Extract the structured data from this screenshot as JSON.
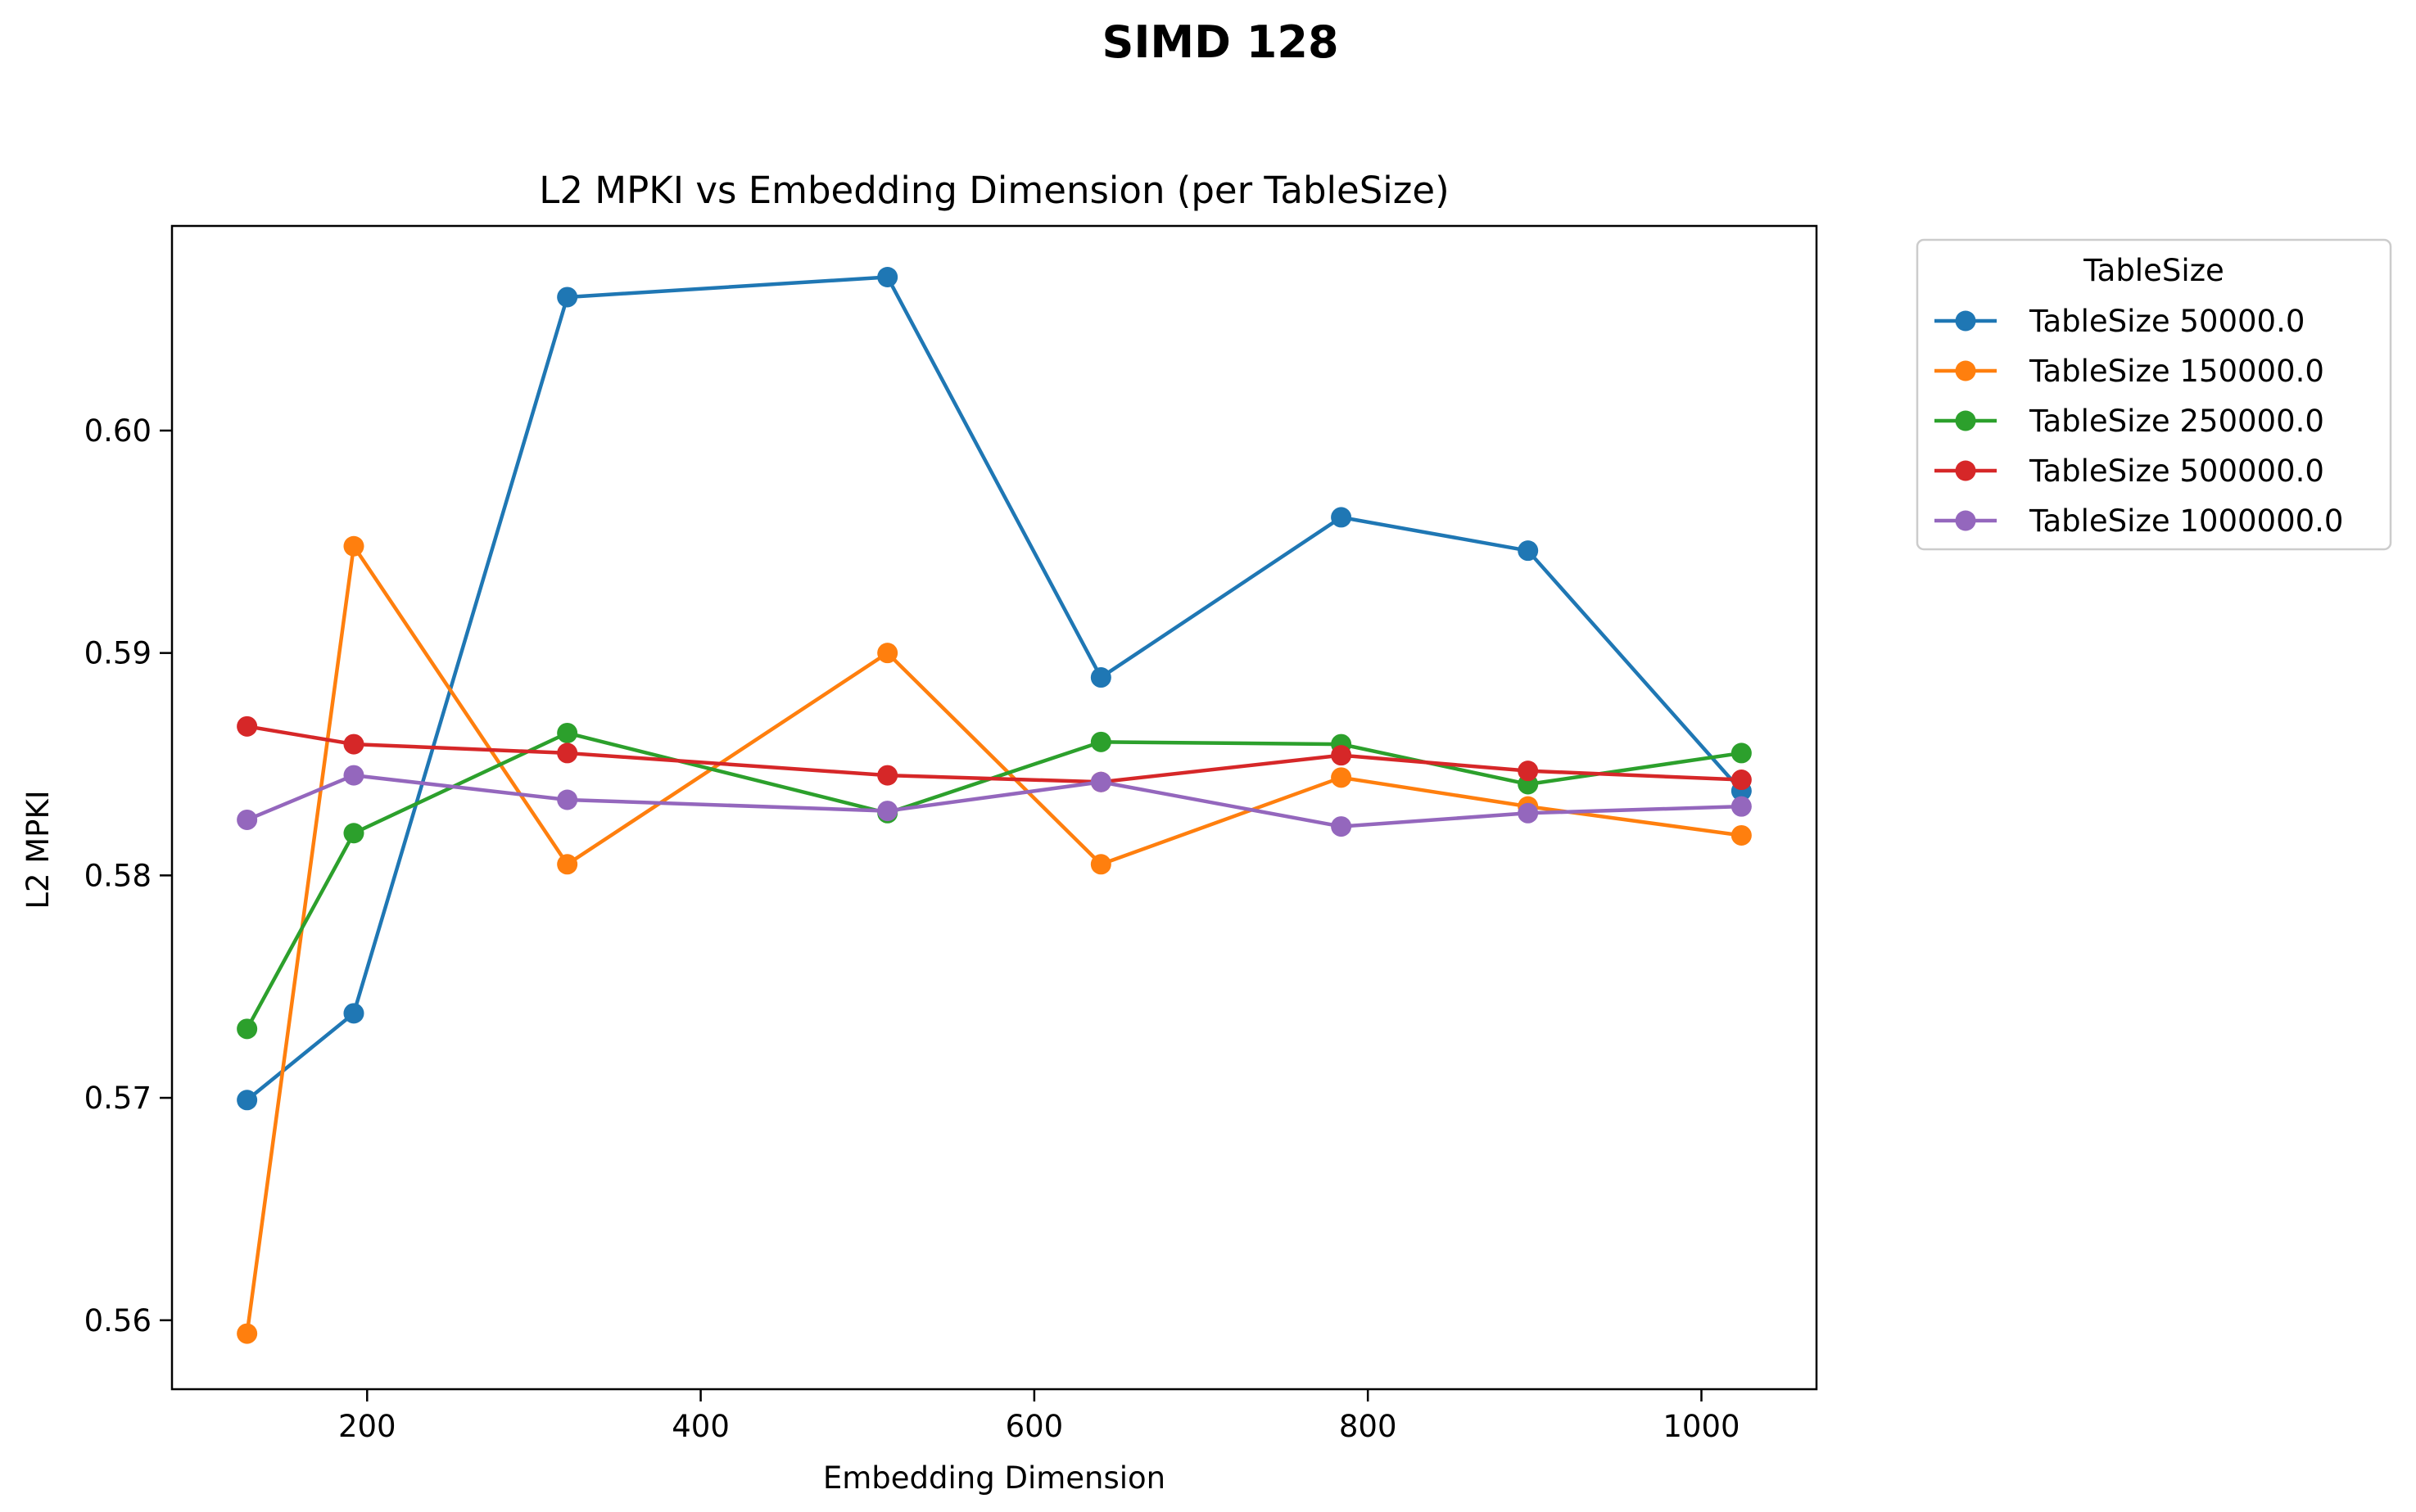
{
  "figure": {
    "suptitle": "SIMD 128"
  },
  "chart_data": {
    "type": "line",
    "title": "L2 MPKI vs Embedding Dimension (per TableSize)",
    "xlabel": "Embedding Dimension",
    "ylabel": "L2 MPKI",
    "xlim": [
      83,
      1069
    ],
    "ylim": [
      0.5569,
      0.6092
    ],
    "xticks": [
      200,
      400,
      600,
      800,
      1000
    ],
    "yticks": [
      0.56,
      0.57,
      0.58,
      0.59,
      0.6
    ],
    "xtick_labels": [
      "200",
      "400",
      "600",
      "800",
      "1000"
    ],
    "ytick_labels": [
      "0.56",
      "0.57",
      "0.58",
      "0.59",
      "0.60"
    ],
    "grid": false,
    "legend": {
      "title": "TableSize",
      "placement": "outside-upper-right"
    },
    "x": [
      128,
      192,
      320,
      512,
      640,
      784,
      896,
      1024
    ],
    "series": [
      {
        "name": "TableSize 50000.0",
        "color": "#1f77b4",
        "values": [
          0.5699,
          0.5738,
          0.606,
          0.6069,
          0.5889,
          0.5961,
          0.5946,
          0.5838
        ]
      },
      {
        "name": "TableSize 150000.0",
        "color": "#ff7f0e",
        "values": [
          0.5594,
          0.5948,
          0.5805,
          0.59,
          0.5805,
          0.5844,
          0.5831,
          0.5818
        ]
      },
      {
        "name": "TableSize 250000.0",
        "color": "#2ca02c",
        "values": [
          0.5731,
          0.5819,
          0.5864,
          0.5828,
          0.586,
          0.5859,
          0.5841,
          0.5855
        ]
      },
      {
        "name": "TableSize 500000.0",
        "color": "#d62728",
        "values": [
          0.5867,
          0.5859,
          0.5855,
          0.5845,
          0.5842,
          0.5854,
          0.5847,
          0.5843
        ]
      },
      {
        "name": "TableSize 1000000.0",
        "color": "#9467bd",
        "values": [
          0.5825,
          0.5845,
          0.5834,
          0.5829,
          0.5842,
          0.5822,
          0.5828,
          0.5831
        ]
      }
    ]
  }
}
